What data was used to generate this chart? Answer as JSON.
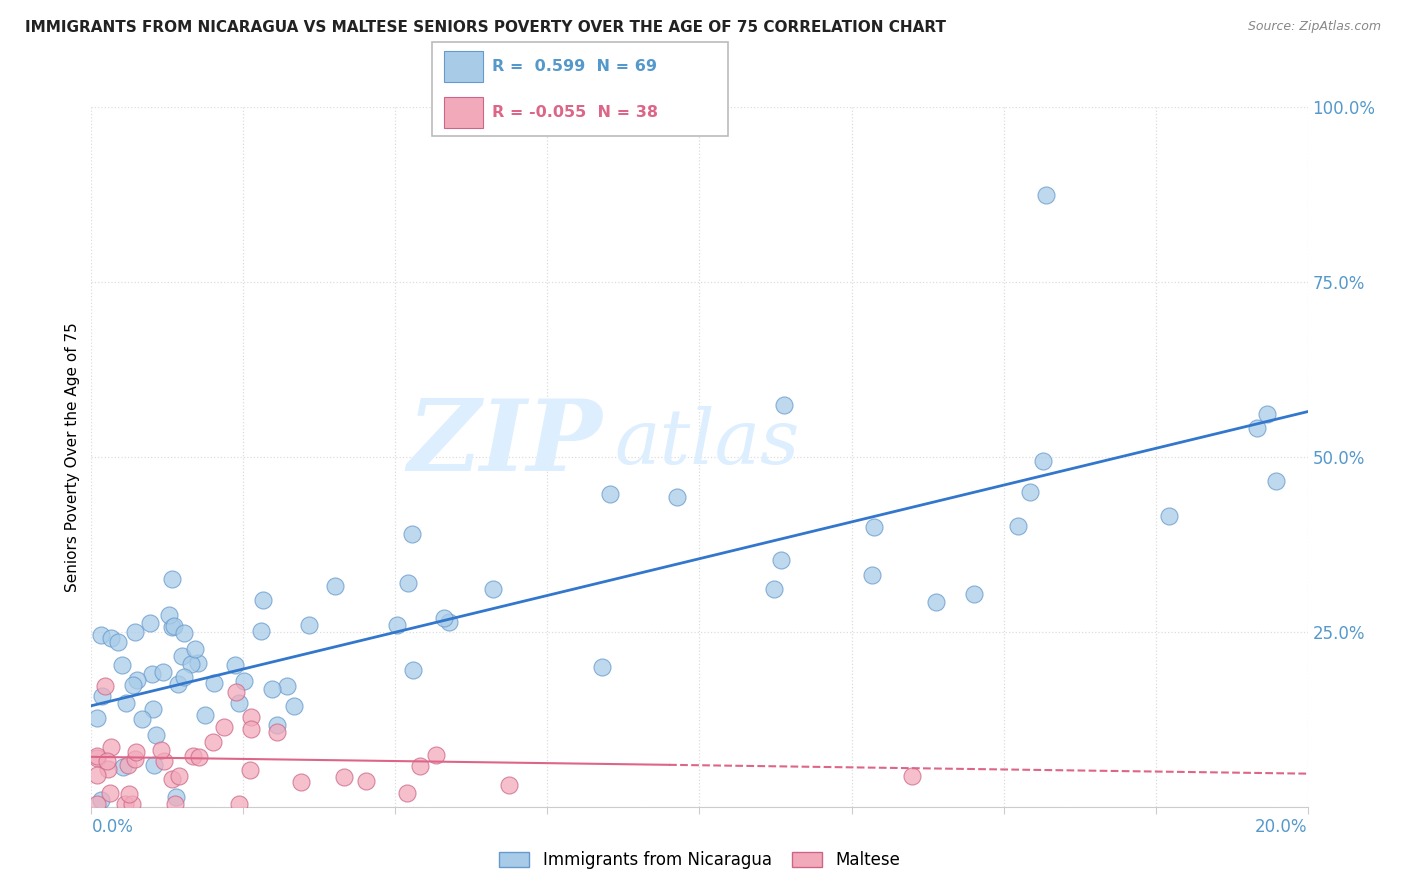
{
  "title": "IMMIGRANTS FROM NICARAGUA VS MALTESE SENIORS POVERTY OVER THE AGE OF 75 CORRELATION CHART",
  "source": "Source: ZipAtlas.com",
  "ylabel": "Seniors Poverty Over the Age of 75",
  "series1_label": "Immigrants from Nicaragua",
  "series1_R": "0.599",
  "series1_N": "69",
  "series1_color": "#A8CCE8",
  "series1_edge": "#6699CC",
  "series2_label": "Maltese",
  "series2_R": "-0.055",
  "series2_N": "38",
  "series2_color": "#F2AABB",
  "series2_edge": "#CC6688",
  "trend1_color": "#3377CC",
  "trend2_color": "#DD6688",
  "background": "#FFFFFF",
  "grid_color": "#DDDDDD",
  "axis_color": "#5599CC",
  "legend_border": "#BBBBBB",
  "xlim": [
    0.0,
    0.2
  ],
  "ylim": [
    0.0,
    1.0
  ],
  "yticks": [
    0.0,
    0.25,
    0.5,
    0.75,
    1.0
  ],
  "ytick_labels": [
    "",
    "25.0%",
    "50.0%",
    "75.0%",
    "100.0%"
  ],
  "trend1_x0": 0.0,
  "trend1_y0": 0.145,
  "trend1_x1": 0.2,
  "trend1_y1": 0.565,
  "trend2_x0": 0.0,
  "trend2_y0": 0.072,
  "trend2_x1": 0.2,
  "trend2_y1": 0.048,
  "trend2_solid_end": 0.095
}
